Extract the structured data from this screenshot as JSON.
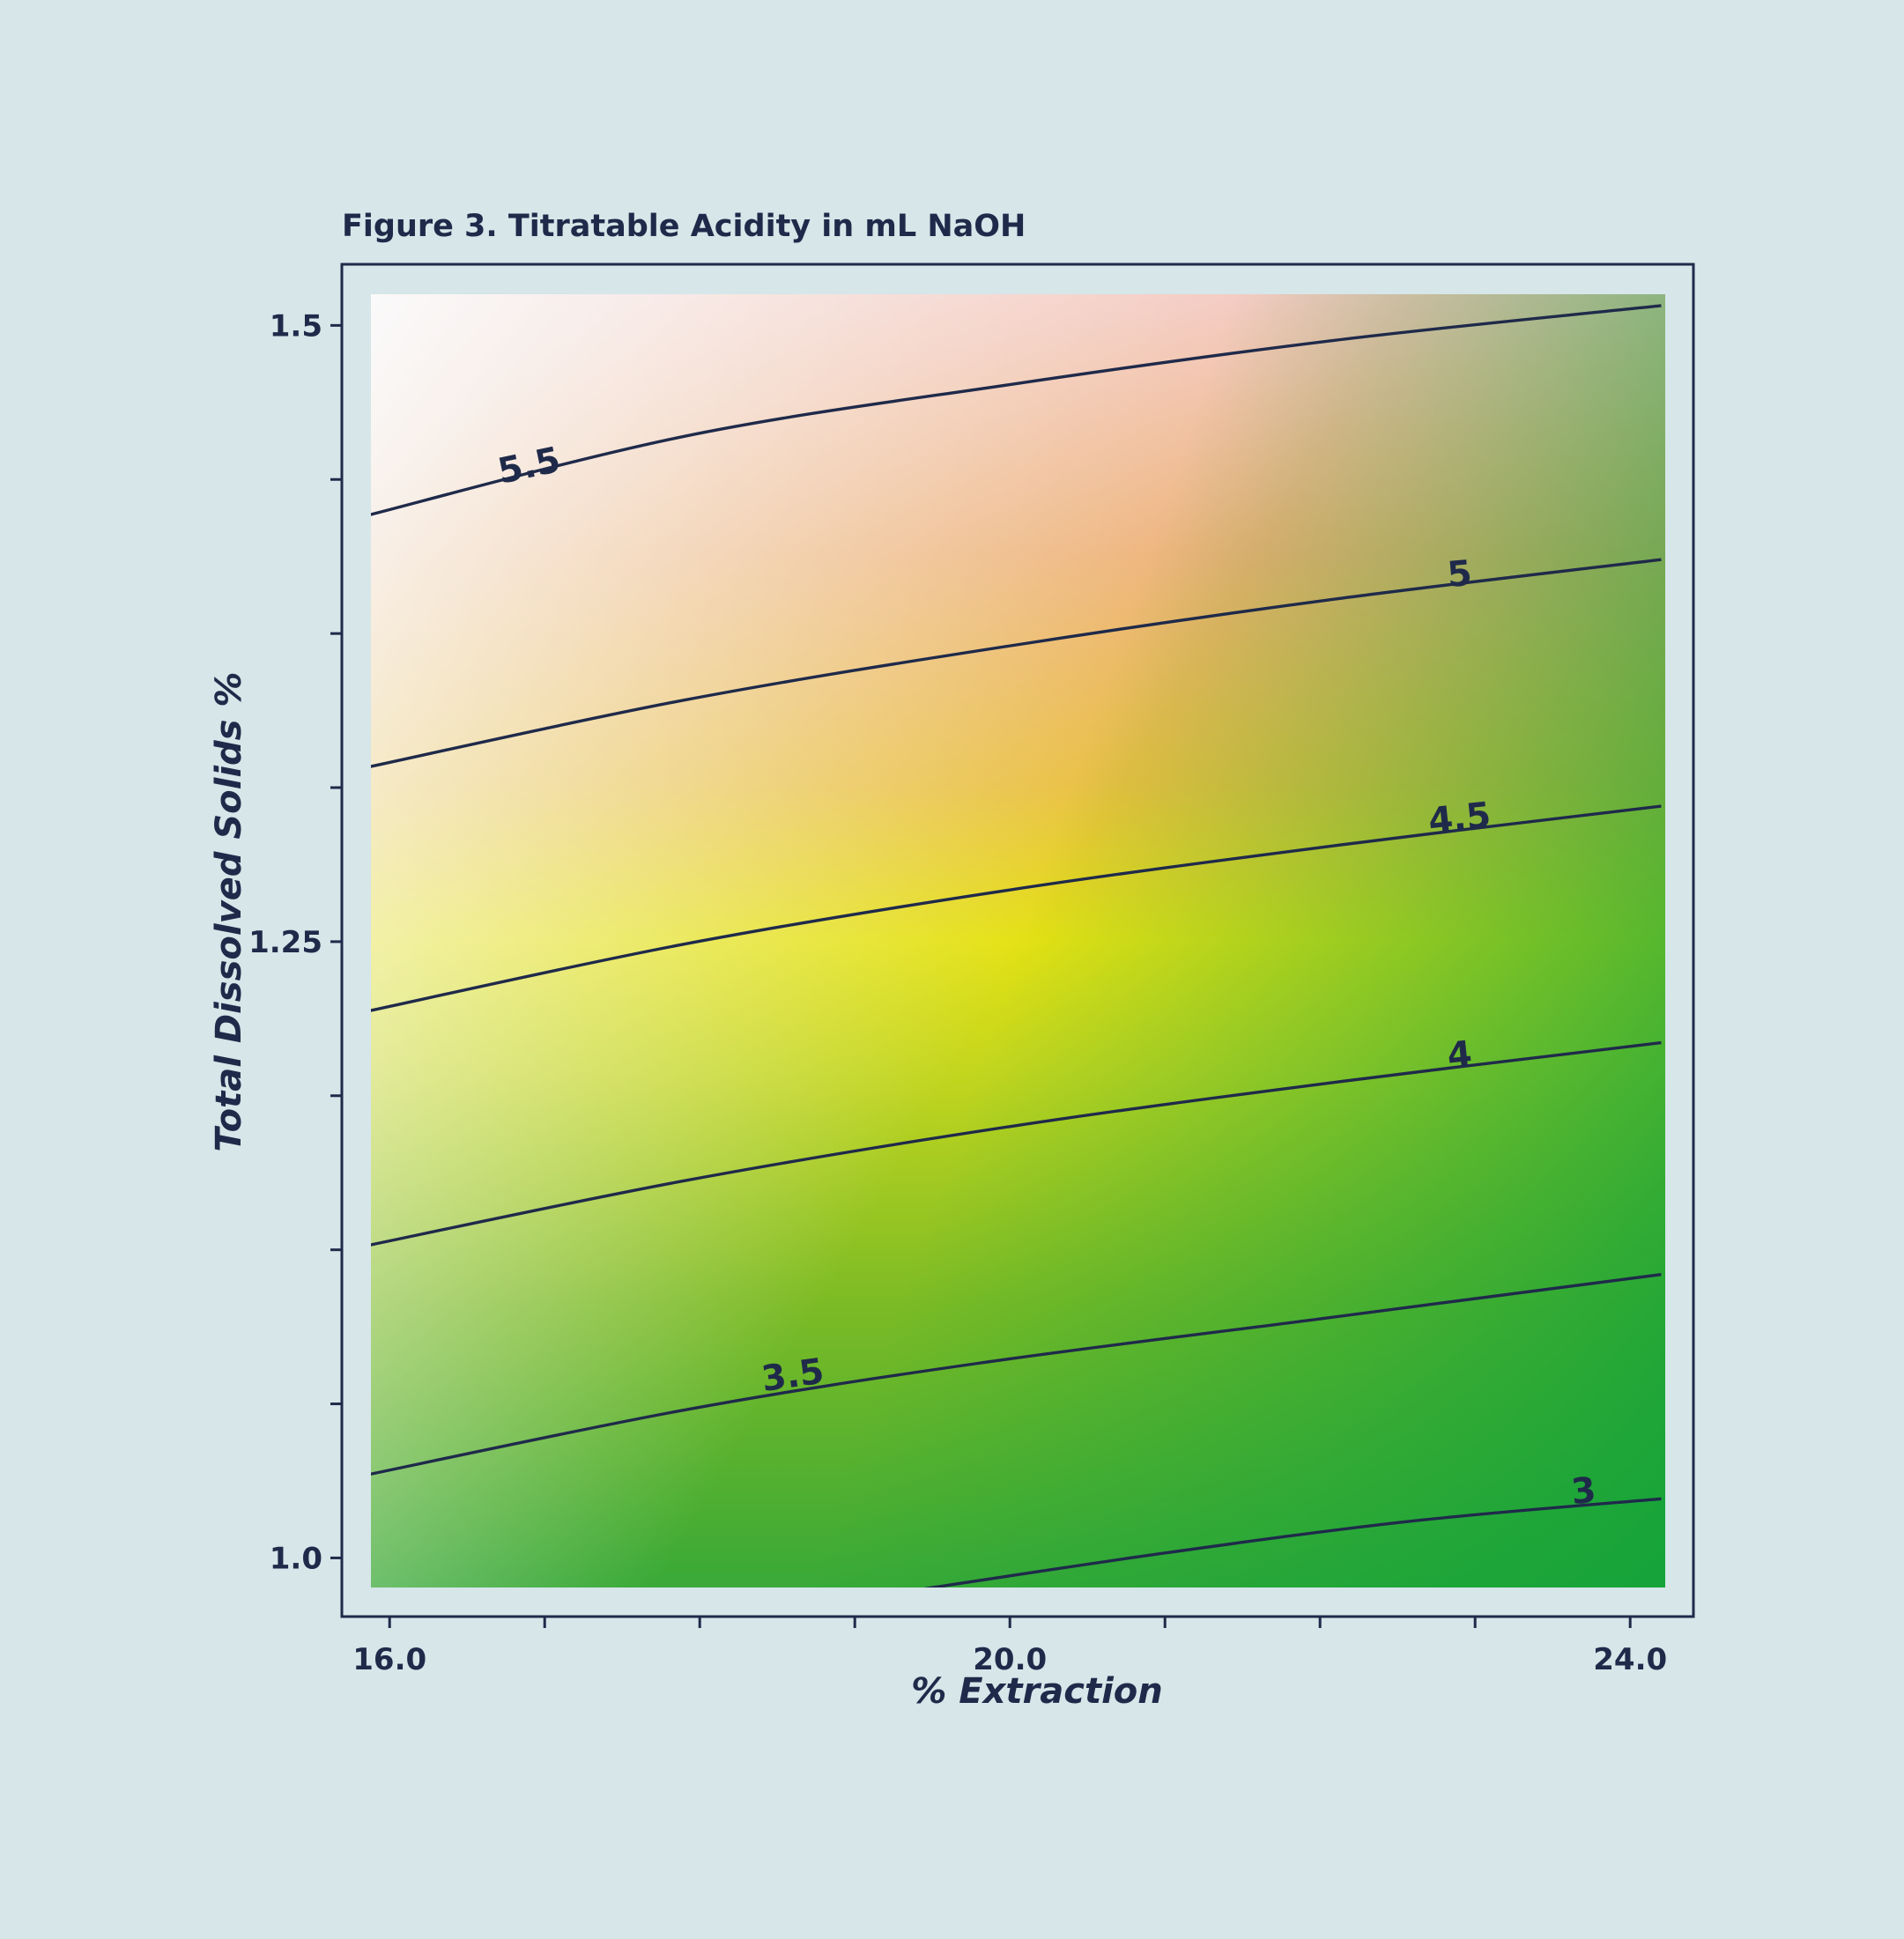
{
  "chart_data": {
    "type": "contour",
    "title": "Figure 3. Titratable Acidity in mL NaOH",
    "xlabel": "% Extraction",
    "ylabel": "Total Dissolved Solids %",
    "xlim": [
      15.8,
      24.3
    ],
    "ylim": [
      0.983,
      1.518
    ],
    "x_ticks": [
      16.0,
      17.0,
      18.0,
      19.0,
      20.0,
      21.0,
      22.0,
      23.0,
      24.0
    ],
    "x_tick_labels": [
      "16.0",
      "",
      "",
      "",
      "20.0",
      "",
      "",
      "",
      "24.0"
    ],
    "y_ticks": [
      1.0,
      1.0625,
      1.125,
      1.1875,
      1.25,
      1.3125,
      1.375,
      1.4375,
      1.5
    ],
    "y_tick_labels": [
      "1.0",
      "",
      "",
      "",
      "1.25",
      "",
      "",
      "",
      "1.5"
    ],
    "colormap": [
      "#12a434",
      "#7ab924",
      "#e6e212",
      "#edaf6e",
      "#f3c5bb",
      "#f8f8f8"
    ],
    "contours": [
      {
        "level": 3,
        "label": "3",
        "points": [
          [
            19.4,
            0.987
          ],
          [
            21.0,
            1.002
          ],
          [
            22.6,
            1.015
          ],
          [
            24.2,
            1.024
          ]
        ]
      },
      {
        "level": 3.5,
        "label": "3.5",
        "points": [
          [
            15.8,
            1.033
          ],
          [
            17.9,
            1.06
          ],
          [
            19.8,
            1.079
          ],
          [
            22.0,
            1.097
          ],
          [
            24.2,
            1.115
          ]
        ]
      },
      {
        "level": 4,
        "label": "4",
        "points": [
          [
            15.8,
            1.126
          ],
          [
            17.9,
            1.153
          ],
          [
            20.0,
            1.175
          ],
          [
            22.1,
            1.193
          ],
          [
            24.2,
            1.209
          ]
        ]
      },
      {
        "level": 4.5,
        "label": "4.5",
        "points": [
          [
            15.8,
            1.221
          ],
          [
            17.9,
            1.249
          ],
          [
            20.0,
            1.271
          ],
          [
            22.1,
            1.289
          ],
          [
            24.2,
            1.305
          ]
        ]
      },
      {
        "level": 5,
        "label": "5",
        "points": [
          [
            15.8,
            1.32
          ],
          [
            17.9,
            1.348
          ],
          [
            20.0,
            1.37
          ],
          [
            22.1,
            1.389
          ],
          [
            24.2,
            1.405
          ]
        ]
      },
      {
        "level": 5.5,
        "label": "5.5",
        "points": [
          [
            15.8,
            1.422
          ],
          [
            17.9,
            1.455
          ],
          [
            20.0,
            1.476
          ],
          [
            22.1,
            1.494
          ],
          [
            24.2,
            1.508
          ]
        ]
      }
    ],
    "contour_labels": [
      {
        "text": "3",
        "x": 23.7,
        "y": 1.027,
        "angle": -6
      },
      {
        "text": "3.5",
        "x": 18.6,
        "y": 1.074,
        "angle": -8
      },
      {
        "text": "4",
        "x": 22.9,
        "y": 1.204,
        "angle": -6
      },
      {
        "text": "4.5",
        "x": 22.9,
        "y": 1.3,
        "angle": -6
      },
      {
        "text": "5",
        "x": 22.9,
        "y": 1.399,
        "angle": -5
      },
      {
        "text": "5.5",
        "x": 16.9,
        "y": 1.443,
        "angle": -12
      }
    ],
    "grid": false,
    "legend": "none"
  }
}
